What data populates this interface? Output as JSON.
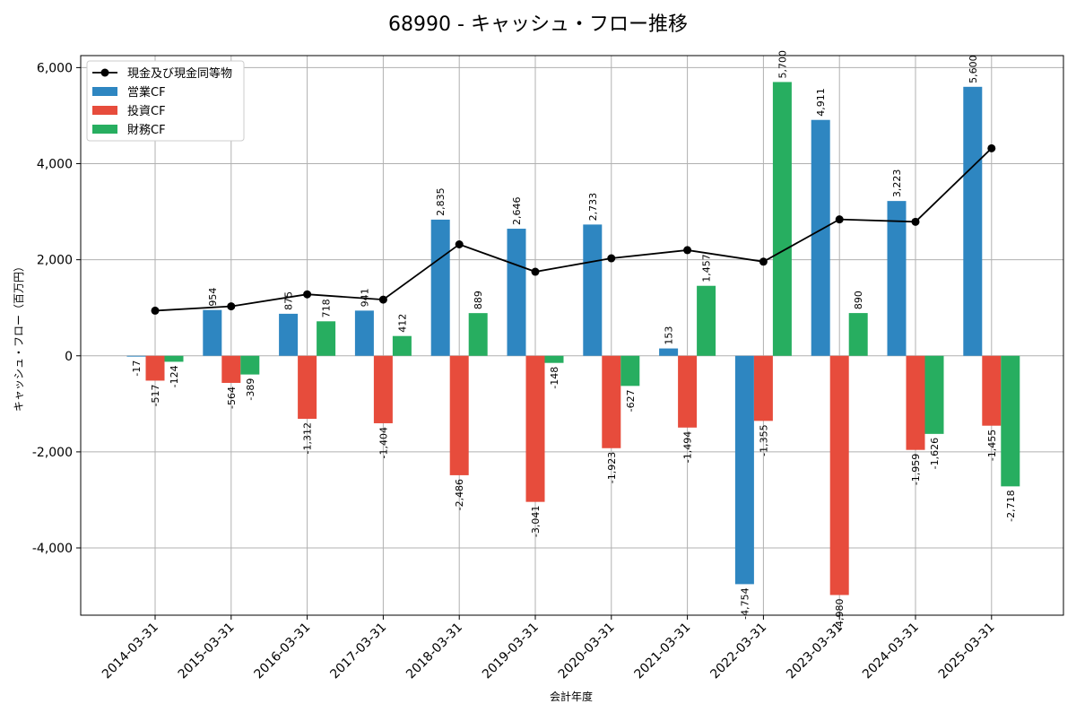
{
  "chart_data": {
    "type": "bar",
    "title": "68990 - キャッシュ・フロー推移",
    "xlabel": "会計年度",
    "ylabel": "キャッシュ・フロー（百万円）",
    "ylim": [
      -5400,
      6250
    ],
    "yticks": [
      -4000,
      -2000,
      0,
      2000,
      4000,
      6000
    ],
    "ytick_labels": [
      "-4,000",
      "-2,000",
      "0",
      "2,000",
      "4,000",
      "6,000"
    ],
    "grid": true,
    "legend_position": "top-left",
    "categories": [
      "2014-03-31",
      "2015-03-31",
      "2016-03-31",
      "2017-03-31",
      "2018-03-31",
      "2019-03-31",
      "2020-03-31",
      "2021-03-31",
      "2022-03-31",
      "2023-03-31",
      "2024-03-31",
      "2025-03-31"
    ],
    "series": [
      {
        "name": "営業CF",
        "type": "bar",
        "color": "#2e86c1",
        "values": [
          -17,
          954,
          875,
          941,
          2835,
          2646,
          2733,
          153,
          -4754,
          4911,
          3223,
          5600
        ],
        "labels": [
          "-17",
          "954",
          "875",
          "941",
          "2,835",
          "2,646",
          "2,733",
          "153",
          "-4,754",
          "4,911",
          "3,223",
          "5,600"
        ]
      },
      {
        "name": "投資CF",
        "type": "bar",
        "color": "#e74c3c",
        "values": [
          -517,
          -564,
          -1312,
          -1404,
          -2486,
          -3041,
          -1923,
          -1494,
          -1355,
          -4980,
          -1959,
          -1455
        ],
        "labels": [
          "-517",
          "-564",
          "-1,312",
          "-1,404",
          "-2,486",
          "-3,041",
          "-1,923",
          "-1,494",
          "-1,355",
          "-4,980",
          "-1,959",
          "-1,455"
        ]
      },
      {
        "name": "財務CF",
        "type": "bar",
        "color": "#27ae60",
        "values": [
          -124,
          -389,
          718,
          412,
          889,
          -148,
          -627,
          1457,
          5700,
          890,
          -1626,
          -2718
        ],
        "labels": [
          "-124",
          "-389",
          "718",
          "412",
          "889",
          "-148",
          "-627",
          "1,457",
          "5,700",
          "890",
          "-1,626",
          "-2,718"
        ]
      },
      {
        "name": "現金及び現金同等物",
        "type": "line",
        "color": "#000000",
        "values": [
          940,
          1030,
          1280,
          1170,
          2320,
          1750,
          2030,
          2200,
          1960,
          2840,
          2790,
          4320
        ]
      }
    ]
  }
}
